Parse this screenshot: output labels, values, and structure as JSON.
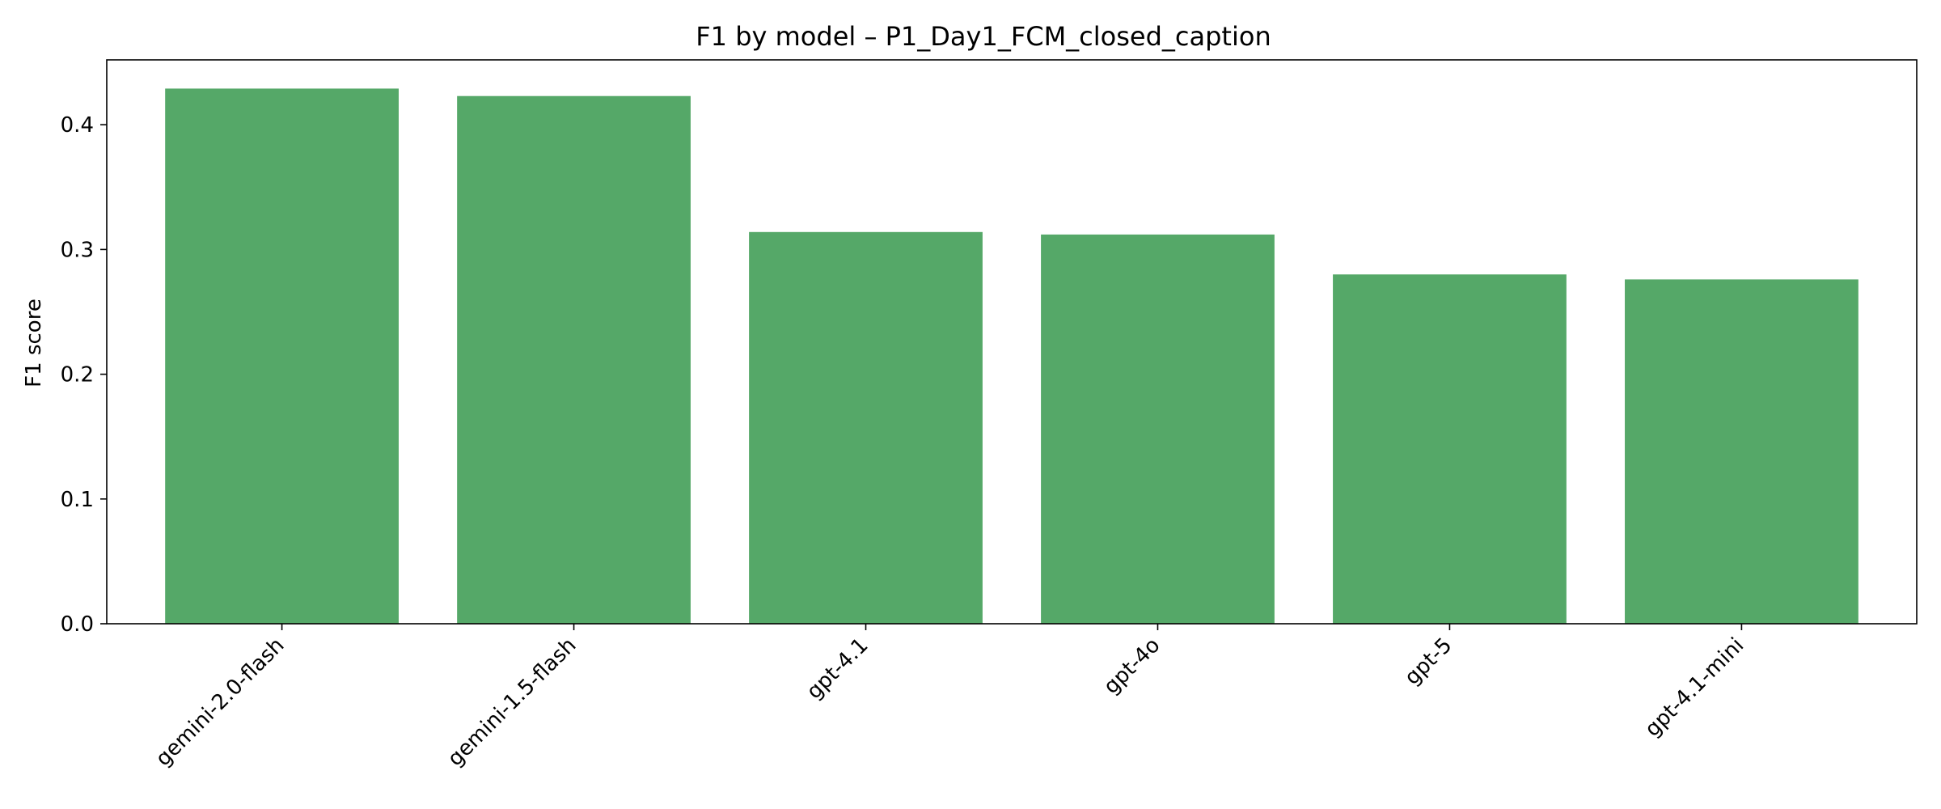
{
  "chart_data": {
    "type": "bar",
    "title": "F1 by model – P1_Day1_FCM_closed_caption",
    "xlabel": "",
    "ylabel": "F1 score",
    "categories": [
      "gemini-2.0-flash",
      "gemini-1.5-flash",
      "gpt-4.1",
      "gpt-4o",
      "gpt-5",
      "gpt-4.1-mini"
    ],
    "values": [
      0.429,
      0.423,
      0.314,
      0.312,
      0.28,
      0.276
    ],
    "ylim": [
      0,
      0.452
    ],
    "yticks": [
      0.0,
      0.1,
      0.2,
      0.3,
      0.4
    ],
    "ytick_labels": [
      "0.0",
      "0.1",
      "0.2",
      "0.3",
      "0.4"
    ],
    "bar_color": "#55a868",
    "grid": false,
    "legend": "none"
  }
}
